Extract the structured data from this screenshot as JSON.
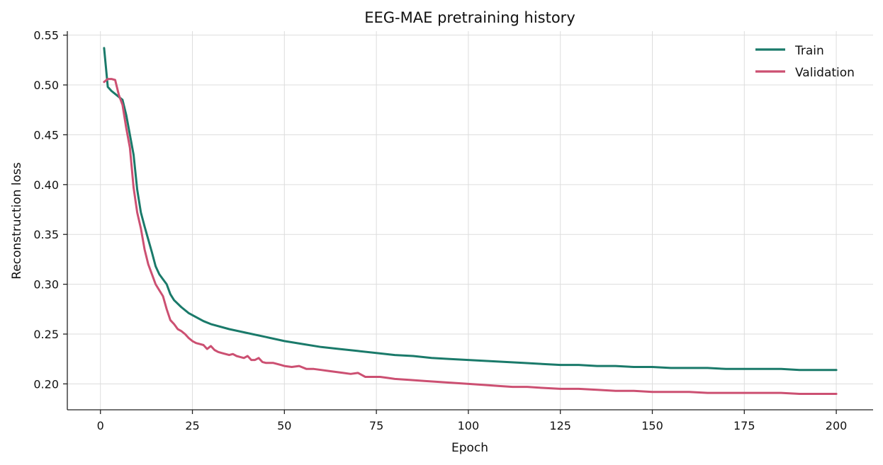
{
  "chart_data": {
    "type": "line",
    "title": "EEG-MAE pretraining history",
    "xlabel": "Epoch",
    "ylabel": "Reconstruction loss",
    "xlim": [
      -9,
      210
    ],
    "ylim": [
      0.174,
      0.554
    ],
    "xticks": [
      0,
      25,
      50,
      75,
      100,
      125,
      150,
      175,
      200
    ],
    "yticks": [
      0.2,
      0.25,
      0.3,
      0.35,
      0.4,
      0.45,
      0.5,
      0.55
    ],
    "xtick_labels": [
      "0",
      "25",
      "50",
      "75",
      "100",
      "125",
      "150",
      "175",
      "200"
    ],
    "ytick_labels": [
      "0.20",
      "0.25",
      "0.30",
      "0.35",
      "0.40",
      "0.45",
      "0.50",
      "0.55"
    ],
    "grid": true,
    "legend_position": "top-right",
    "series": [
      {
        "name": "Train",
        "color": "#1a7a6a",
        "x": [
          1,
          2,
          3,
          4,
          5,
          6,
          7,
          8,
          9,
          10,
          11,
          12,
          13,
          14,
          15,
          16,
          17,
          18,
          19,
          20,
          22,
          24,
          26,
          28,
          30,
          35,
          40,
          45,
          50,
          55,
          60,
          65,
          70,
          75,
          80,
          85,
          90,
          95,
          100,
          105,
          110,
          115,
          120,
          125,
          130,
          135,
          140,
          145,
          150,
          155,
          160,
          165,
          170,
          175,
          180,
          185,
          190,
          195,
          200
        ],
        "y": [
          0.537,
          0.498,
          0.494,
          0.491,
          0.488,
          0.485,
          0.47,
          0.45,
          0.43,
          0.395,
          0.372,
          0.358,
          0.345,
          0.332,
          0.318,
          0.31,
          0.305,
          0.3,
          0.29,
          0.284,
          0.277,
          0.271,
          0.267,
          0.263,
          0.26,
          0.255,
          0.251,
          0.247,
          0.243,
          0.24,
          0.237,
          0.235,
          0.233,
          0.231,
          0.229,
          0.228,
          0.226,
          0.225,
          0.224,
          0.223,
          0.222,
          0.221,
          0.22,
          0.219,
          0.219,
          0.218,
          0.218,
          0.217,
          0.217,
          0.216,
          0.216,
          0.216,
          0.215,
          0.215,
          0.215,
          0.215,
          0.214,
          0.214,
          0.214
        ]
      },
      {
        "name": "Validation",
        "color": "#cc5072",
        "x": [
          1,
          2,
          3,
          4,
          5,
          6,
          7,
          8,
          9,
          10,
          11,
          12,
          13,
          14,
          15,
          16,
          17,
          18,
          19,
          20,
          21,
          22,
          23,
          24,
          25,
          26,
          27,
          28,
          29,
          30,
          31,
          32,
          33,
          34,
          35,
          36,
          37,
          38,
          39,
          40,
          41,
          42,
          43,
          44,
          45,
          46,
          47,
          48,
          49,
          50,
          52,
          54,
          56,
          58,
          60,
          62,
          64,
          66,
          68,
          70,
          72,
          74,
          76,
          78,
          80,
          84,
          88,
          92,
          96,
          100,
          104,
          108,
          112,
          116,
          120,
          125,
          130,
          135,
          140,
          145,
          150,
          155,
          160,
          165,
          170,
          175,
          180,
          185,
          190,
          195,
          200
        ],
        "y": [
          0.503,
          0.506,
          0.506,
          0.505,
          0.49,
          0.48,
          0.457,
          0.437,
          0.397,
          0.372,
          0.356,
          0.335,
          0.32,
          0.31,
          0.3,
          0.294,
          0.288,
          0.275,
          0.264,
          0.26,
          0.255,
          0.253,
          0.25,
          0.246,
          0.243,
          0.241,
          0.24,
          0.239,
          0.235,
          0.238,
          0.234,
          0.232,
          0.231,
          0.23,
          0.229,
          0.23,
          0.228,
          0.227,
          0.226,
          0.228,
          0.224,
          0.224,
          0.226,
          0.222,
          0.221,
          0.221,
          0.221,
          0.22,
          0.219,
          0.218,
          0.217,
          0.218,
          0.215,
          0.215,
          0.214,
          0.213,
          0.212,
          0.211,
          0.21,
          0.211,
          0.207,
          0.207,
          0.207,
          0.206,
          0.205,
          0.204,
          0.203,
          0.202,
          0.201,
          0.2,
          0.199,
          0.198,
          0.197,
          0.197,
          0.196,
          0.195,
          0.195,
          0.194,
          0.193,
          0.193,
          0.192,
          0.192,
          0.192,
          0.191,
          0.191,
          0.191,
          0.191,
          0.191,
          0.19,
          0.19,
          0.19
        ]
      }
    ]
  }
}
